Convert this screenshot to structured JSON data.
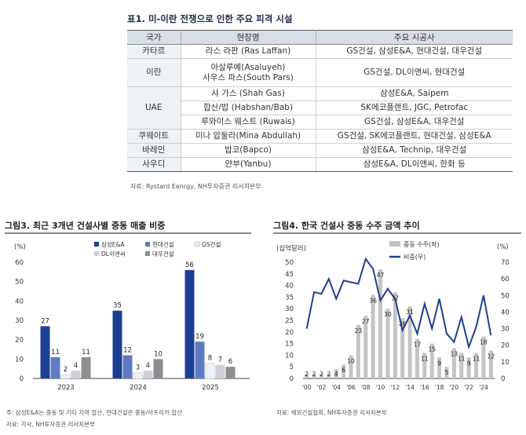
{
  "table": {
    "title": "표1. 미-이란 전쟁으로 인한 주요 피격 시설",
    "headers": [
      "국가",
      "현장명",
      "주요 시공사"
    ],
    "rows": [
      {
        "country": "카타르",
        "sites": [
          "라스 라판 (Ras Laffan)"
        ],
        "contractors": "GS건설, 삼성E&A, 현대건설, 대우건설"
      },
      {
        "country": "이란",
        "sites": [
          "아살루예(Asaluyeh)",
          "사우스 파스(South Pars)"
        ],
        "contractors": "GS건설, DL이앤씨, 현대건설"
      },
      {
        "country": "UAE",
        "sites": [
          "샤 가스 (Shah Gas)"
        ],
        "contractors": "삼성E&A, Saipem"
      },
      {
        "country": "",
        "sites": [
          "합산/밥 (Habshan/Bab)"
        ],
        "contractors": "SK에코플랜트, JGC, Petrofac"
      },
      {
        "country": "",
        "sites": [
          "루와이스 웨스트 (Ruwais)"
        ],
        "contractors": "GS건설, 삼성E&A, 대우건설"
      },
      {
        "country": "쿠웨이트",
        "sites": [
          "미나 압둘라(Mina Abdullah)"
        ],
        "contractors": "GS건설, SK에코플랜트, 현대건설, 삼성E&A"
      },
      {
        "country": "바레인",
        "sites": [
          "밥코(Bapco)"
        ],
        "contractors": "삼성E&A, Technip, 대우건설"
      },
      {
        "country": "사우디",
        "sites": [
          "얀부(Yanbu)"
        ],
        "contractors": "삼성E&A, DL이앤씨, 한화 등"
      }
    ],
    "source": "자료: Rystard Eenrgy, NH투자증권 리서치본부"
  },
  "chart3": {
    "title": "그림3. 최근 3개년 건설사별 중동 매출 비중",
    "unit": "(%)",
    "note": "주: 삼성E&A는 중동 및 기타 지역 합산, 현대건설은 중동/아프리카 합산",
    "source": "자료: 각사, NH투자증권 리서치본부"
  },
  "chart4": {
    "title": "그림4. 한국 건설사 중동 수주 금액 추이",
    "unit_left": "(십억달러)",
    "unit_right": "(%)",
    "source": "자료: 해외건설협회, NH투자증권 리서치본부"
  },
  "chart_data": [
    {
      "type": "bar",
      "categories": [
        "2023",
        "2024",
        "2025"
      ],
      "ylim": [
        0,
        60
      ],
      "yticks": [
        0,
        10,
        20,
        30,
        40,
        50,
        60
      ],
      "legend_placement": "top-right",
      "series": [
        {
          "name": "삼성E&A",
          "color": "#1d3f94",
          "values": [
            27,
            35,
            56
          ]
        },
        {
          "name": "현대건설",
          "color": "#5e7bc2",
          "values": [
            11,
            12,
            19
          ]
        },
        {
          "name": "GS건설",
          "color": "#eef0f4",
          "values": [
            2,
            3,
            8
          ]
        },
        {
          "name": "DL이앤씨",
          "color": "#cdd1da",
          "values": [
            4,
            4,
            7
          ]
        },
        {
          "name": "대우건설",
          "color": "#8e8e8e",
          "values": [
            11,
            10,
            6
          ]
        }
      ]
    },
    {
      "type": "bar",
      "categories": [
        "'00",
        "'01",
        "'02",
        "'03",
        "'04",
        "'05",
        "'06",
        "'07",
        "'08",
        "'09",
        "'10",
        "'11",
        "'12",
        "'13",
        "'14",
        "'15",
        "'16",
        "'17",
        "'18",
        "'19",
        "'20",
        "'21",
        "'22",
        "'23",
        "'24",
        "'25"
      ],
      "xtick_labels": [
        "'00",
        "'02",
        "'04",
        "'06",
        "'08",
        "'10",
        "'12",
        "'14",
        "'16",
        "'18",
        "'20",
        "'22",
        "'24"
      ],
      "ylim": [
        0,
        50
      ],
      "yticks": [
        0,
        5,
        10,
        15,
        20,
        25,
        30,
        35,
        40,
        45,
        50
      ],
      "y2lim": [
        0,
        70
      ],
      "y2ticks": [
        0,
        10,
        20,
        30,
        40,
        50,
        60,
        70
      ],
      "legend_placement": "top-right",
      "series": [
        {
          "name": "중동 수주(좌)",
          "type": "bar",
          "axis": "left",
          "color": "#c4c4c4",
          "values": [
            2,
            2,
            2,
            2,
            4,
            6,
            10,
            23,
            27,
            36,
            47,
            30,
            37,
            26,
            31,
            17,
            11,
            15,
            9,
            5,
            13,
            11,
            9,
            11,
            18,
            12
          ]
        },
        {
          "name": "비중(우)",
          "type": "line",
          "axis": "right",
          "color": "#1d3f94",
          "values": [
            30,
            52,
            51,
            60,
            48,
            59,
            58,
            57,
            72,
            66,
            47,
            54,
            48,
            29,
            38,
            27,
            45,
            30,
            48,
            27,
            22,
            37,
            19,
            31,
            50,
            26
          ]
        }
      ]
    }
  ]
}
